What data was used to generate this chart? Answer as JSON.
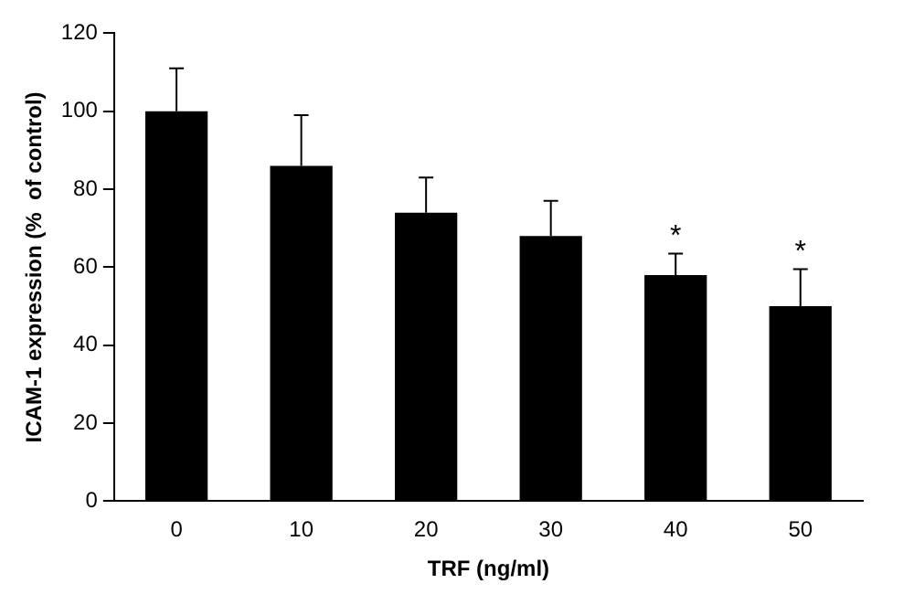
{
  "chart_data": {
    "type": "bar",
    "xlabel": "TRF (ng/ml)",
    "ylabel": "ICAM-1 expression (%  of control)",
    "categories": [
      "0",
      "10",
      "20",
      "30",
      "40",
      "50"
    ],
    "values": [
      100,
      86,
      74,
      68,
      58,
      50
    ],
    "errors": [
      [
        100,
        111
      ],
      [
        86,
        99
      ],
      [
        74,
        83
      ],
      [
        68,
        77
      ],
      [
        58,
        63.5
      ],
      [
        50,
        59.5
      ]
    ],
    "color": "#000000",
    "ylim": [
      0,
      120
    ],
    "yticks": [
      0,
      20,
      40,
      60,
      80,
      100,
      120
    ],
    "grid": false,
    "legend": false,
    "annotations": [
      {
        "text": "*",
        "x": "40",
        "y": 63.5
      },
      {
        "text": "*",
        "x": "50",
        "y": 59.5
      }
    ]
  }
}
